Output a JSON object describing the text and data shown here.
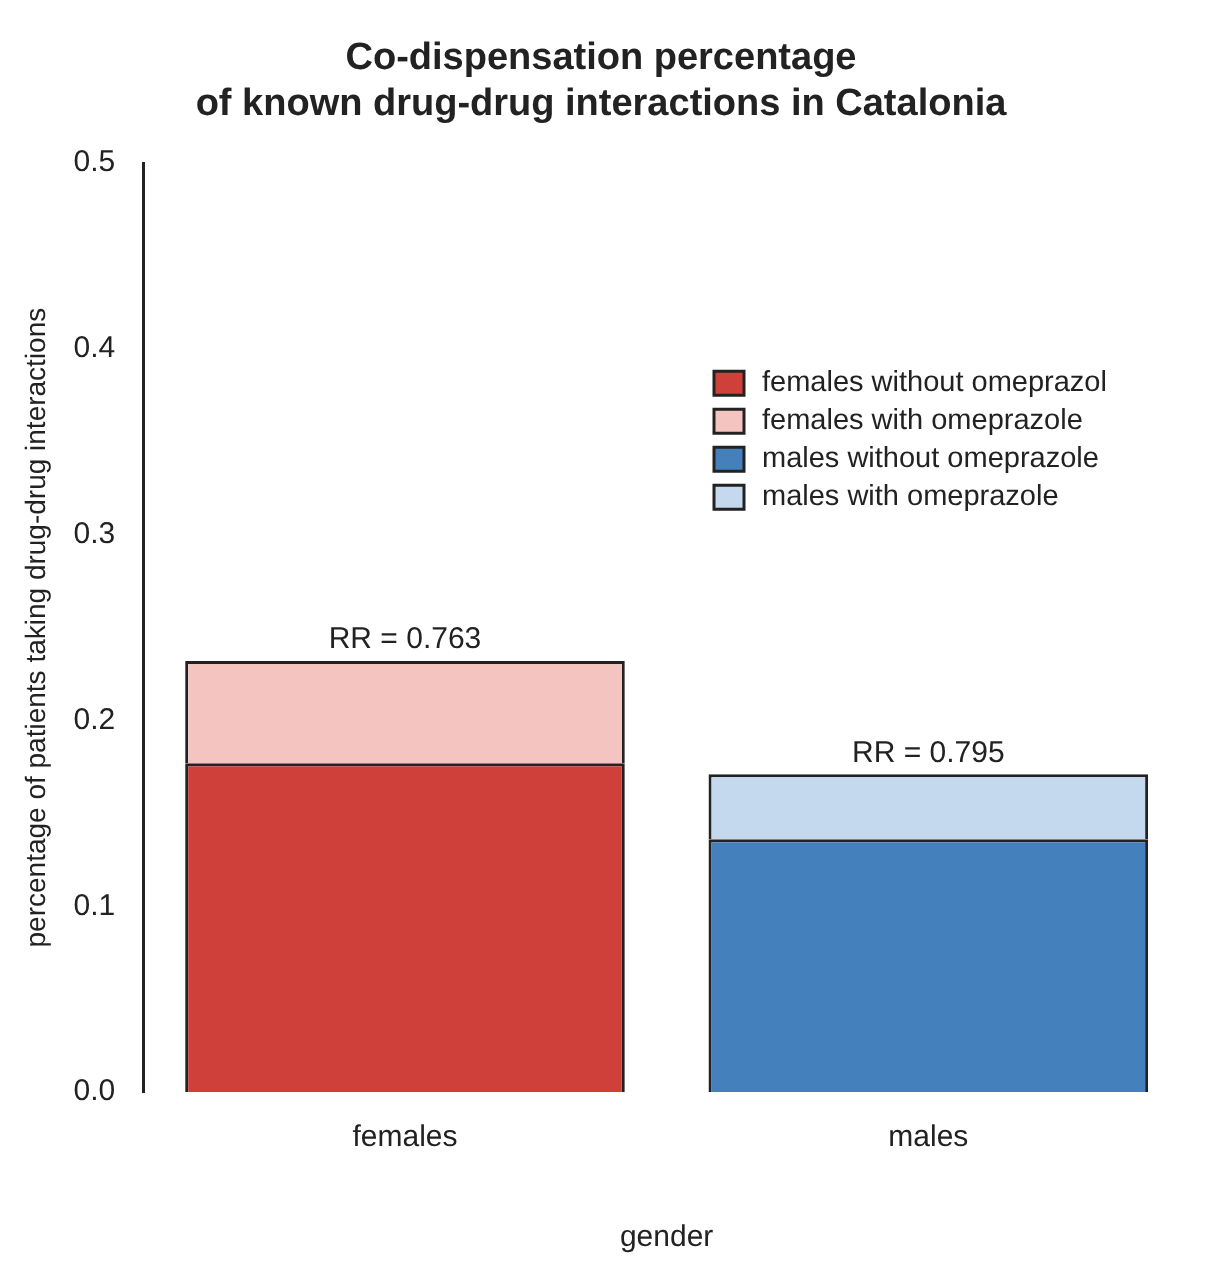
{
  "chart_data": {
    "type": "bar",
    "stacked": true,
    "title": "Co-dispensation percentage\nof known drug-drug interactions in Catalonia",
    "xlabel": "gender",
    "ylabel": "percentage of patients taking drug-drug interactions",
    "categories": [
      "females",
      "males"
    ],
    "series": [
      {
        "name": "females without omeprazol",
        "color": "#d0403a",
        "values": [
          0.177,
          null
        ]
      },
      {
        "name": "females with omeprazole",
        "color": "#f4c4c1",
        "values": [
          0.055,
          null
        ]
      },
      {
        "name": "males without omeprazole",
        "color": "#4480bb",
        "values": [
          null,
          0.136
        ]
      },
      {
        "name": "males with omeprazole",
        "color": "#c4d8ee",
        "values": [
          null,
          0.035
        ]
      }
    ],
    "ylim": [
      0,
      0.5
    ],
    "yticks": [
      {
        "value": 0,
        "label": "0.0"
      },
      {
        "value": 0.1,
        "label": "0.1"
      },
      {
        "value": 0.2,
        "label": "0.2"
      },
      {
        "value": 0.3,
        "label": "0.3"
      },
      {
        "value": 0.4,
        "label": "0.4"
      },
      {
        "value": 0.5,
        "label": "0.5"
      }
    ],
    "grid": false,
    "legend": "right",
    "annotations": [
      {
        "text": "RR = 0.763",
        "x": "females",
        "y": 0.232
      },
      {
        "text": "RR = 0.795",
        "x": "males",
        "y": 0.171
      }
    ]
  }
}
